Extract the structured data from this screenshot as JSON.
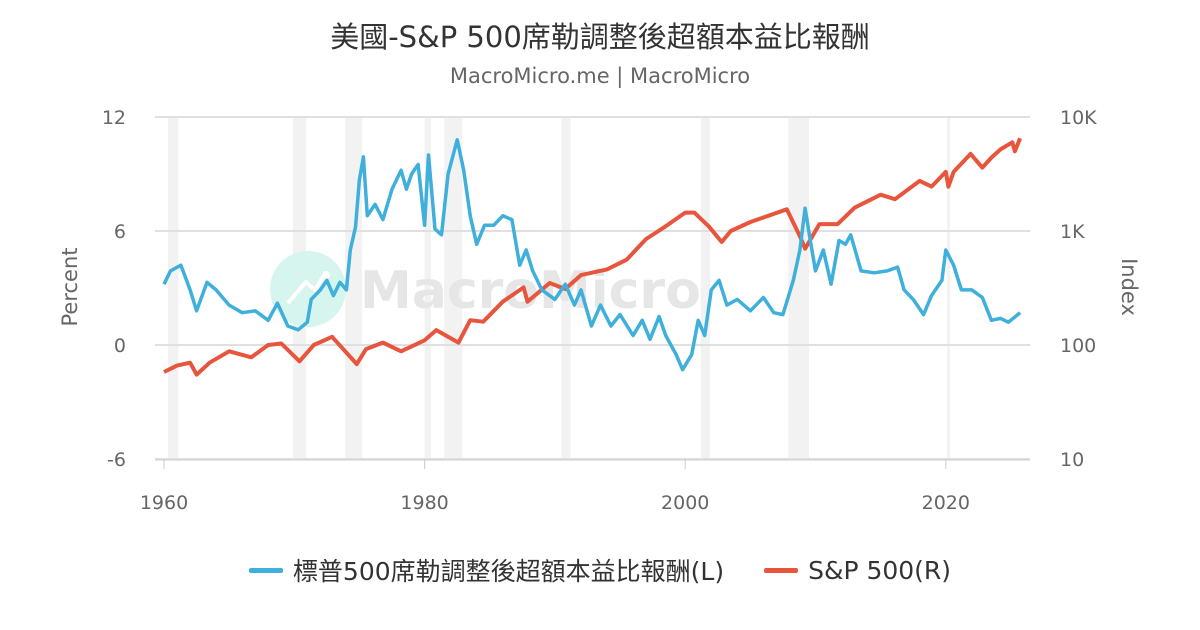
{
  "chart_data": {
    "type": "line",
    "title": "美國-S&P 500席勒調整後超額本益比報酬",
    "subtitle": "MacroMicro.me | MacroMicro",
    "watermark": "MacroMicro",
    "xlabel": "",
    "ylabel_left": "Percent",
    "ylabel_right": "Index",
    "xlim": [
      1960,
      2026
    ],
    "x_ticks": [
      "1960",
      "1980",
      "2000",
      "2020"
    ],
    "ylim_left": [
      -6,
      12
    ],
    "y_ticks_left": [
      "12",
      "6",
      "0",
      "-6"
    ],
    "ylim_right": [
      10,
      10000
    ],
    "y_scale_right": "log",
    "y_ticks_right": [
      "10K",
      "1K",
      "100",
      "10"
    ],
    "grid": true,
    "legend_position": "bottom",
    "recessions": [
      [
        1960.3,
        1961.1
      ],
      [
        1969.9,
        1970.9
      ],
      [
        1973.9,
        1975.2
      ],
      [
        1980.0,
        1980.5
      ],
      [
        1981.5,
        1982.9
      ],
      [
        1990.5,
        1991.2
      ],
      [
        2001.2,
        2001.9
      ],
      [
        2007.9,
        2009.5
      ],
      [
        2020.1,
        2020.3
      ]
    ],
    "series": [
      {
        "name": "標普500席勒調整後超額本益比報酬(L)",
        "axis": "left",
        "color": "#3fafdb",
        "points": [
          [
            1960.0,
            3.2
          ],
          [
            1960.5,
            3.9
          ],
          [
            1961.3,
            4.2
          ],
          [
            1962.0,
            2.9
          ],
          [
            1962.5,
            1.8
          ],
          [
            1963.3,
            3.3
          ],
          [
            1964.0,
            2.9
          ],
          [
            1965.0,
            2.1
          ],
          [
            1966.0,
            1.7
          ],
          [
            1967.0,
            1.8
          ],
          [
            1968.0,
            1.3
          ],
          [
            1968.7,
            2.2
          ],
          [
            1969.5,
            1.0
          ],
          [
            1970.3,
            0.8
          ],
          [
            1971.0,
            1.2
          ],
          [
            1971.3,
            2.4
          ],
          [
            1972.0,
            2.9
          ],
          [
            1972.5,
            3.4
          ],
          [
            1973.0,
            2.6
          ],
          [
            1973.5,
            3.3
          ],
          [
            1974.0,
            2.9
          ],
          [
            1974.3,
            5.0
          ],
          [
            1974.7,
            6.2
          ],
          [
            1975.0,
            8.7
          ],
          [
            1975.3,
            9.9
          ],
          [
            1975.6,
            6.8
          ],
          [
            1976.2,
            7.4
          ],
          [
            1976.8,
            6.6
          ],
          [
            1977.5,
            8.2
          ],
          [
            1978.2,
            9.2
          ],
          [
            1978.6,
            8.2
          ],
          [
            1979.0,
            9.0
          ],
          [
            1979.5,
            9.5
          ],
          [
            1980.0,
            6.3
          ],
          [
            1980.3,
            10.0
          ],
          [
            1980.8,
            6.1
          ],
          [
            1981.3,
            5.8
          ],
          [
            1981.8,
            9.0
          ],
          [
            1982.5,
            10.8
          ],
          [
            1983.0,
            9.2
          ],
          [
            1983.5,
            6.8
          ],
          [
            1984.0,
            5.3
          ],
          [
            1984.6,
            6.3
          ],
          [
            1985.3,
            6.3
          ],
          [
            1986.0,
            6.8
          ],
          [
            1986.7,
            6.6
          ],
          [
            1987.3,
            4.2
          ],
          [
            1987.8,
            5.0
          ],
          [
            1988.3,
            3.9
          ],
          [
            1989.0,
            2.9
          ],
          [
            1990.0,
            2.4
          ],
          [
            1990.8,
            3.2
          ],
          [
            1991.5,
            2.1
          ],
          [
            1992.0,
            2.9
          ],
          [
            1992.8,
            1.0
          ],
          [
            1993.5,
            2.1
          ],
          [
            1994.3,
            1.0
          ],
          [
            1995.0,
            1.6
          ],
          [
            1996.0,
            0.5
          ],
          [
            1996.7,
            1.3
          ],
          [
            1997.3,
            0.3
          ],
          [
            1998.0,
            1.5
          ],
          [
            1998.5,
            0.5
          ],
          [
            1999.3,
            -0.5
          ],
          [
            1999.8,
            -1.3
          ],
          [
            2000.5,
            -0.5
          ],
          [
            2001.0,
            1.3
          ],
          [
            2001.5,
            0.5
          ],
          [
            2002.0,
            2.9
          ],
          [
            2002.6,
            3.4
          ],
          [
            2003.2,
            2.1
          ],
          [
            2004.0,
            2.4
          ],
          [
            2005.0,
            1.8
          ],
          [
            2006.0,
            2.5
          ],
          [
            2006.8,
            1.7
          ],
          [
            2007.5,
            1.6
          ],
          [
            2008.3,
            3.4
          ],
          [
            2008.8,
            5.0
          ],
          [
            2009.2,
            7.2
          ],
          [
            2009.6,
            5.5
          ],
          [
            2010.0,
            3.9
          ],
          [
            2010.6,
            5.0
          ],
          [
            2011.2,
            3.2
          ],
          [
            2011.8,
            5.5
          ],
          [
            2012.3,
            5.3
          ],
          [
            2012.7,
            5.8
          ],
          [
            2013.5,
            3.9
          ],
          [
            2014.5,
            3.8
          ],
          [
            2015.5,
            3.9
          ],
          [
            2016.3,
            4.1
          ],
          [
            2016.8,
            2.9
          ],
          [
            2017.5,
            2.4
          ],
          [
            2018.3,
            1.6
          ],
          [
            2018.9,
            2.6
          ],
          [
            2019.7,
            3.4
          ],
          [
            2020.0,
            5.0
          ],
          [
            2020.6,
            4.2
          ],
          [
            2021.2,
            2.9
          ],
          [
            2022.0,
            2.9
          ],
          [
            2022.8,
            2.5
          ],
          [
            2023.5,
            1.3
          ],
          [
            2024.2,
            1.4
          ],
          [
            2024.8,
            1.2
          ],
          [
            2025.7,
            1.7
          ]
        ]
      },
      {
        "name": "S&P 500(R)",
        "axis": "right",
        "color": "#e8553d",
        "points": [
          [
            1960.0,
            58
          ],
          [
            1961.0,
            66
          ],
          [
            1962.0,
            70
          ],
          [
            1962.5,
            55
          ],
          [
            1963.5,
            70
          ],
          [
            1965.0,
            88
          ],
          [
            1966.7,
            78
          ],
          [
            1968.0,
            100
          ],
          [
            1969.0,
            103
          ],
          [
            1970.4,
            72
          ],
          [
            1971.5,
            100
          ],
          [
            1972.9,
            118
          ],
          [
            1974.8,
            68
          ],
          [
            1975.5,
            92
          ],
          [
            1976.8,
            105
          ],
          [
            1978.2,
            88
          ],
          [
            1980.0,
            110
          ],
          [
            1980.9,
            135
          ],
          [
            1982.6,
            105
          ],
          [
            1983.5,
            165
          ],
          [
            1984.5,
            160
          ],
          [
            1986.0,
            240
          ],
          [
            1987.6,
            320
          ],
          [
            1987.9,
            240
          ],
          [
            1989.6,
            350
          ],
          [
            1990.8,
            310
          ],
          [
            1992.0,
            410
          ],
          [
            1994.0,
            460
          ],
          [
            1995.5,
            560
          ],
          [
            1997.0,
            850
          ],
          [
            1998.5,
            1100
          ],
          [
            2000.0,
            1450
          ],
          [
            2000.7,
            1450
          ],
          [
            2001.8,
            1100
          ],
          [
            2002.8,
            800
          ],
          [
            2003.5,
            1000
          ],
          [
            2005.0,
            1200
          ],
          [
            2007.8,
            1550
          ],
          [
            2008.8,
            900
          ],
          [
            2009.2,
            700
          ],
          [
            2010.3,
            1150
          ],
          [
            2011.7,
            1150
          ],
          [
            2013.0,
            1600
          ],
          [
            2015.0,
            2080
          ],
          [
            2016.1,
            1900
          ],
          [
            2018.0,
            2750
          ],
          [
            2018.9,
            2450
          ],
          [
            2020.0,
            3300
          ],
          [
            2020.2,
            2450
          ],
          [
            2020.6,
            3300
          ],
          [
            2021.9,
            4750
          ],
          [
            2022.8,
            3600
          ],
          [
            2023.5,
            4400
          ],
          [
            2024.2,
            5200
          ],
          [
            2025.1,
            6000
          ],
          [
            2025.3,
            5000
          ],
          [
            2025.7,
            6500
          ]
        ]
      }
    ]
  }
}
